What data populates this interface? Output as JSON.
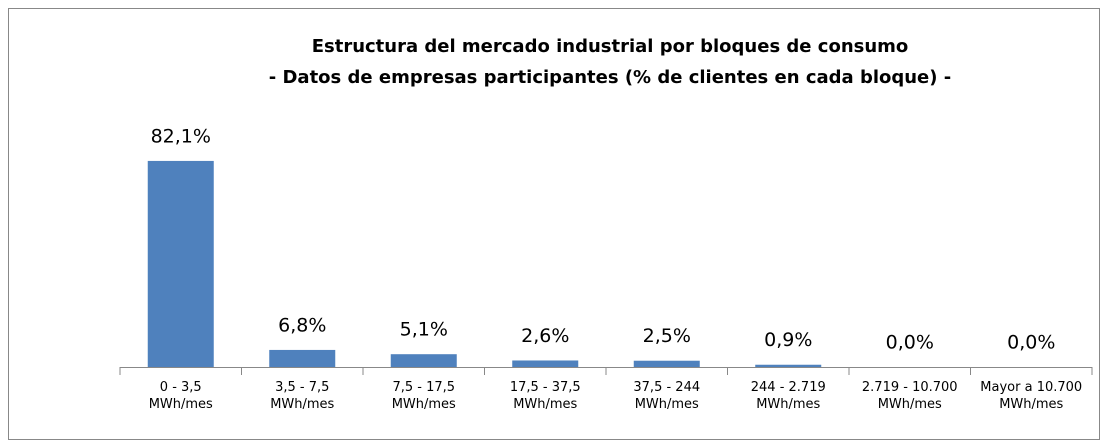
{
  "chart_data": {
    "type": "bar",
    "title": "Estructura del mercado industrial por bloques de consumo",
    "subtitle": "- Datos de empresas participantes (% de clientes en cada bloque) -",
    "categories": [
      "0 - 3,5\nMWh/mes",
      "3,5 - 7,5\nMWh/mes",
      "7,5 - 17,5\nMWh/mes",
      "17,5 - 37,5\nMWh/mes",
      "37,5 - 244\nMWh/mes",
      "244 - 2.719\nMWh/mes",
      "2.719 - 10.700\nMWh/mes",
      "Mayor a 10.700\nMWh/mes"
    ],
    "values": [
      82.1,
      6.8,
      5.1,
      2.6,
      2.5,
      0.9,
      0.0,
      0.0
    ],
    "value_labels": [
      "82,1%",
      "6,8%",
      "5,1%",
      "2,6%",
      "2,5%",
      "0,9%",
      "0,0%",
      "0,0%"
    ],
    "color": "#4f81bd"
  }
}
